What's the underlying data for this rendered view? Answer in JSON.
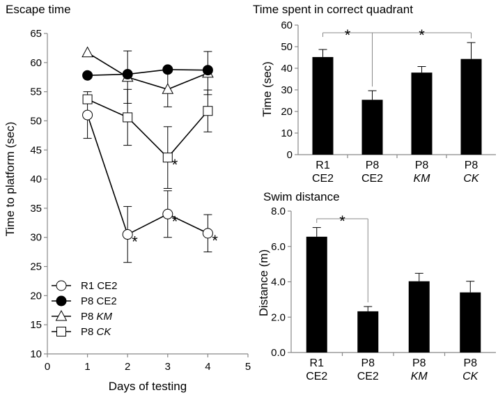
{
  "chart_data": [
    {
      "type": "line",
      "title": "Escape time",
      "xlabel": "Days of testing",
      "ylabel": "Time to platform (sec)",
      "xlim": [
        0,
        5
      ],
      "ylim": [
        10,
        65
      ],
      "xticks": [
        "0",
        "1",
        "2",
        "3",
        "4",
        "5"
      ],
      "yticks": [
        "10",
        "15",
        "20",
        "25",
        "30",
        "35",
        "40",
        "45",
        "50",
        "55",
        "60",
        "65"
      ],
      "legend_position": "bottom-left",
      "series": [
        {
          "name": "R1 CE2",
          "label_main": "R1 CE2",
          "label_italic": "",
          "marker": "circle-open",
          "x": [
            1,
            2,
            3,
            4
          ],
          "y": [
            51.0,
            30.5,
            34.0,
            30.7
          ],
          "err": [
            4.0,
            4.8,
            4.0,
            3.2
          ],
          "stars": [
            false,
            true,
            true,
            true
          ]
        },
        {
          "name": "P8 CE2",
          "label_main": "P8 CE2",
          "label_italic": "",
          "marker": "circle-filled",
          "x": [
            1,
            2,
            3,
            4
          ],
          "y": [
            57.8,
            58.0,
            58.8,
            58.7
          ],
          "err": [
            0,
            0,
            0,
            0
          ],
          "stars": [
            false,
            false,
            false,
            false
          ]
        },
        {
          "name": "P8 KM",
          "label_main": "P8 ",
          "label_italic": "KM",
          "marker": "triangle-open",
          "x": [
            1,
            2,
            3,
            4
          ],
          "y": [
            61.7,
            57.5,
            55.4,
            58.2
          ],
          "err": [
            0,
            4.5,
            3.0,
            3.7
          ],
          "stars": [
            false,
            false,
            false,
            false
          ]
        },
        {
          "name": "P8 CK",
          "label_main": "P8 ",
          "label_italic": "CK",
          "marker": "square-open",
          "x": [
            1,
            2,
            3,
            4
          ],
          "y": [
            53.7,
            50.6,
            43.7,
            51.7
          ],
          "err": [
            0,
            4.8,
            5.3,
            3.6
          ],
          "stars": [
            false,
            false,
            true,
            false
          ]
        }
      ],
      "star_text": "*"
    },
    {
      "type": "bar",
      "title": "Time spent in correct quadrant",
      "ylabel": "Time (sec)",
      "ylim": [
        0,
        60
      ],
      "yticks": [
        "0",
        "10",
        "20",
        "30",
        "40",
        "50",
        "60"
      ],
      "categories": [
        {
          "line1": "R1",
          "line2": "CE2",
          "italic": false
        },
        {
          "line1": "P8",
          "line2": "CE2",
          "italic": false
        },
        {
          "line1": "P8",
          "line2": "KM",
          "italic": true
        },
        {
          "line1": "P8",
          "line2": "CK",
          "italic": true
        }
      ],
      "values": [
        45.2,
        25.4,
        38.0,
        44.3
      ],
      "errors": [
        3.5,
        4.2,
        2.8,
        7.6
      ],
      "significance": [
        {
          "from": 0,
          "to": 1,
          "label": "*"
        },
        {
          "from": 1,
          "to": 3,
          "label": "*"
        }
      ]
    },
    {
      "type": "bar",
      "title": "Swim distance",
      "ylabel": "Distance (m)",
      "ylim": [
        0,
        8
      ],
      "yticks": [
        "0.0",
        "2.0",
        "4.0",
        "6.0",
        "8.0"
      ],
      "categories": [
        {
          "line1": "R1",
          "line2": "CE2",
          "italic": false
        },
        {
          "line1": "P8",
          "line2": "CE2",
          "italic": false
        },
        {
          "line1": "P8",
          "line2": "KM",
          "italic": true
        },
        {
          "line1": "P8",
          "line2": "CK",
          "italic": true
        }
      ],
      "values": [
        6.55,
        2.33,
        4.03,
        3.4
      ],
      "errors": [
        0.52,
        0.27,
        0.45,
        0.63
      ],
      "significance": [
        {
          "from": 0,
          "to": 1,
          "label": "*"
        }
      ]
    }
  ]
}
